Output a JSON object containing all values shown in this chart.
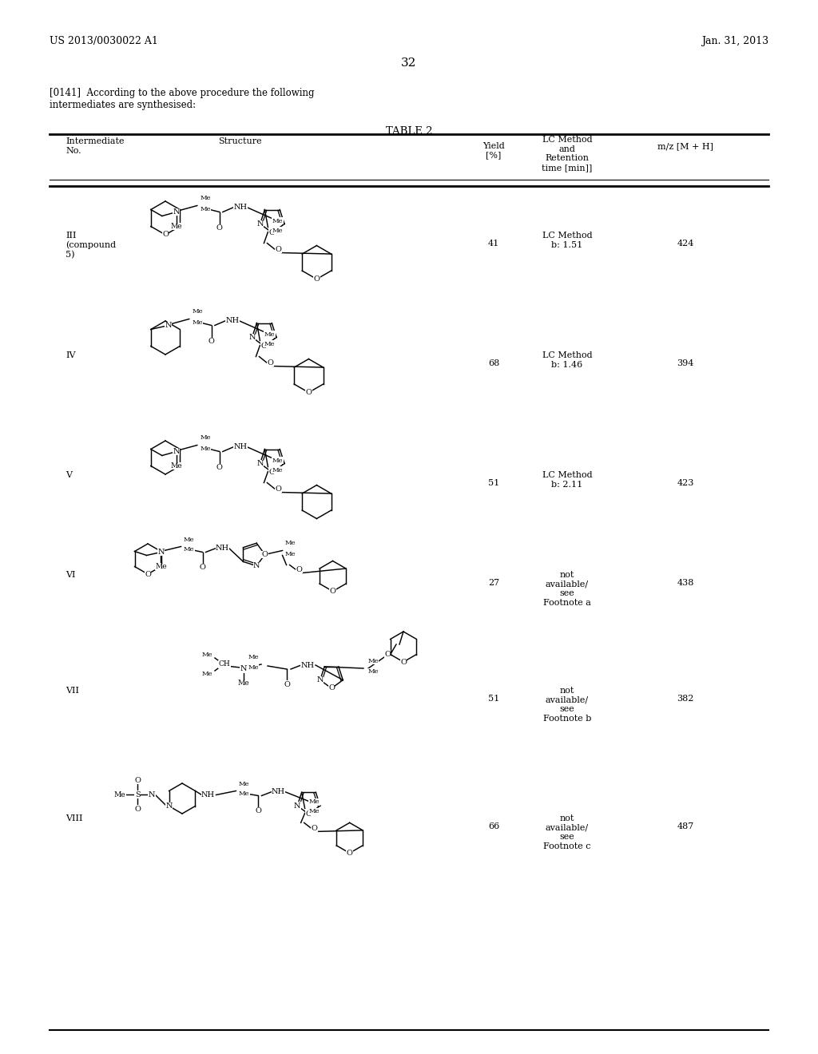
{
  "page_header_left": "US 2013/0030022 A1",
  "page_header_right": "Jan. 31, 2013",
  "page_number": "32",
  "intro_text_1": "[0141]  According to the above procedure the following",
  "intro_text_2": "intermediates are synthesised:",
  "table_title": "TABLE 2",
  "rows": [
    {
      "id": "III\n(compound\n5)",
      "yield": "41",
      "lc": "LC Method\nb: 1.51",
      "mz": "424"
    },
    {
      "id": "IV",
      "yield": "68",
      "lc": "LC Method\nb: 1.46",
      "mz": "394"
    },
    {
      "id": "V",
      "yield": "51",
      "lc": "LC Method\nb: 2.11",
      "mz": "423"
    },
    {
      "id": "VI",
      "yield": "27",
      "lc": "not\navailable/\nsee\nFootnote a",
      "mz": "438"
    },
    {
      "id": "VII",
      "yield": "51",
      "lc": "not\navailable/\nsee\nFootnote b",
      "mz": "382"
    },
    {
      "id": "VIII",
      "yield": "66",
      "lc": "not\navailable/\nsee\nFootnote c",
      "mz": "487"
    }
  ],
  "bg_color": "#ffffff",
  "text_color": "#000000"
}
